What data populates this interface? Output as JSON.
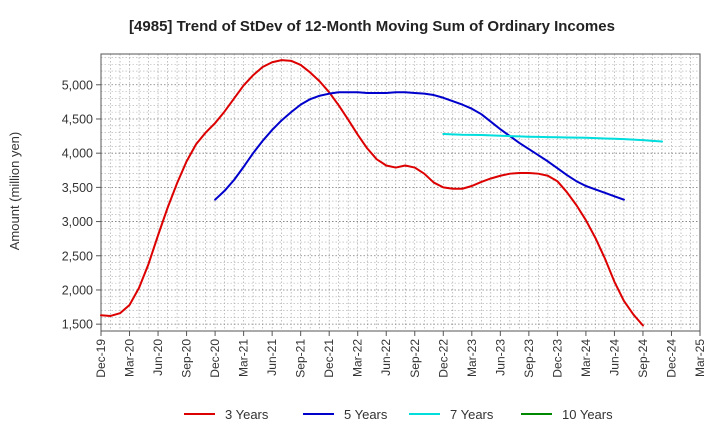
{
  "chart_data": {
    "type": "line",
    "title": "[4985]  Trend of StDev of 12-Month Moving Sum of Ordinary Incomes",
    "ylabel": "Amount (million yen)",
    "xlabel": "",
    "ylim": [
      1400,
      5450
    ],
    "yticks": [
      1500,
      2000,
      2500,
      3000,
      3500,
      4000,
      4500,
      5000
    ],
    "ytick_labels": [
      "1,500",
      "2,000",
      "2,500",
      "3,000",
      "3,500",
      "4,000",
      "4,500",
      "5,000"
    ],
    "xticks": [
      "Dec-19",
      "Mar-20",
      "Jun-20",
      "Sep-20",
      "Dec-20",
      "Mar-21",
      "Jun-21",
      "Sep-21",
      "Dec-21",
      "Mar-22",
      "Jun-22",
      "Sep-22",
      "Dec-22",
      "Mar-23",
      "Jun-23",
      "Sep-23",
      "Dec-23",
      "Mar-24",
      "Jun-24",
      "Sep-24",
      "Dec-24",
      "Mar-25"
    ],
    "grid": true,
    "legend_position": "bottom",
    "series": [
      {
        "name": "3 Years",
        "color": "#dd0000",
        "start_month_index": 0,
        "values": [
          1630,
          1620,
          1660,
          1780,
          2030,
          2380,
          2800,
          3200,
          3560,
          3880,
          4130,
          4300,
          4440,
          4610,
          4800,
          4990,
          5140,
          5260,
          5330,
          5360,
          5350,
          5290,
          5180,
          5050,
          4890,
          4700,
          4490,
          4270,
          4070,
          3910,
          3820,
          3790,
          3820,
          3790,
          3700,
          3570,
          3500,
          3480,
          3480,
          3520,
          3580,
          3630,
          3670,
          3700,
          3710,
          3710,
          3700,
          3670,
          3590,
          3430,
          3240,
          3020,
          2760,
          2460,
          2120,
          1840,
          1640,
          1480
        ]
      },
      {
        "name": "5 Years",
        "color": "#0000cc",
        "start_month_index": 12,
        "values": [
          3320,
          3450,
          3610,
          3800,
          4000,
          4180,
          4340,
          4480,
          4600,
          4710,
          4790,
          4840,
          4870,
          4890,
          4890,
          4890,
          4880,
          4880,
          4880,
          4890,
          4890,
          4880,
          4870,
          4850,
          4810,
          4760,
          4710,
          4650,
          4570,
          4460,
          4350,
          4250,
          4150,
          4060,
          3970,
          3880,
          3780,
          3680,
          3590,
          3520,
          3470,
          3420,
          3370,
          3320
        ]
      },
      {
        "name": "7 Years",
        "color": "#00dddd",
        "start_month_index": 36,
        "values": [
          4280,
          4275,
          4270,
          4268,
          4265,
          4260,
          4255,
          4250,
          4245,
          4240,
          4238,
          4235,
          4232,
          4230,
          4228,
          4225,
          4220,
          4215,
          4210,
          4205,
          4198,
          4190,
          4180,
          4170
        ]
      },
      {
        "name": "10 Years",
        "color": "#008800",
        "start_month_index": 0,
        "values": []
      }
    ]
  }
}
